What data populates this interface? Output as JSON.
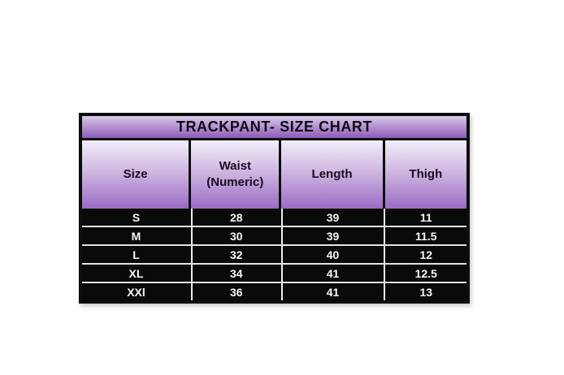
{
  "chart_data": {
    "type": "table",
    "title": "TRACKPANT- SIZE CHART",
    "columns": [
      "Size",
      "Waist (Numeric)",
      "Length",
      "Thigh"
    ],
    "rows": [
      [
        "S",
        28,
        39,
        11
      ],
      [
        "M",
        30,
        39,
        11.5
      ],
      [
        "L",
        32,
        40,
        12
      ],
      [
        "XL",
        34,
        41,
        12.5
      ],
      [
        "XXl",
        36,
        41,
        13
      ]
    ],
    "layout": {
      "header_style": "vertical purple gradient, dark text",
      "body_style": "black rows, white bold text, light separators"
    },
    "colors": {
      "title_gradient_top": "#d8cbe9",
      "title_gradient_bottom": "#8a5db6",
      "header_gradient_top": "#f2edf8",
      "header_gradient_bottom": "#9a6bc4",
      "row_background": "#0a0a0a",
      "row_text": "#f7f7f7",
      "border": "#0c0c0e",
      "page_background": "#ffffff"
    }
  }
}
